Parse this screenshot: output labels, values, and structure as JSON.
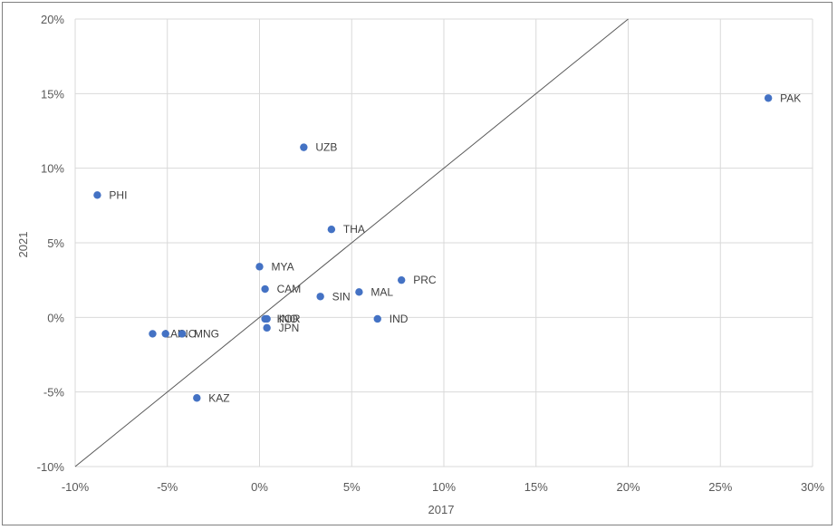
{
  "chart_data": {
    "type": "scatter",
    "title": "",
    "xlabel": "2017",
    "ylabel": "2021",
    "xlim": [
      -0.1,
      0.3
    ],
    "ylim": [
      -0.1,
      0.2
    ],
    "x_ticks": [
      -0.1,
      -0.05,
      0.0,
      0.05,
      0.1,
      0.15,
      0.2,
      0.25,
      0.3
    ],
    "x_tick_labels": [
      "-10%",
      "-5%",
      "0%",
      "5%",
      "10%",
      "15%",
      "20%",
      "25%",
      "30%"
    ],
    "y_ticks": [
      -0.1,
      -0.05,
      0.0,
      0.05,
      0.1,
      0.15,
      0.2
    ],
    "y_tick_labels": [
      "-10%",
      "-5%",
      "0%",
      "5%",
      "10%",
      "15%",
      "20%"
    ],
    "grid": true,
    "marker_color": "#4472c4",
    "reference_line": {
      "type": "y=x",
      "color": "#595959"
    },
    "points": [
      {
        "label": "PAK",
        "x": 0.276,
        "y": 0.147
      },
      {
        "label": "UZB",
        "x": 0.024,
        "y": 0.114
      },
      {
        "label": "PHI",
        "x": -0.088,
        "y": 0.082
      },
      {
        "label": "THA",
        "x": 0.039,
        "y": 0.059
      },
      {
        "label": "MYA",
        "x": 0.0,
        "y": 0.034
      },
      {
        "label": "PRC",
        "x": 0.077,
        "y": 0.025
      },
      {
        "label": "CAM",
        "x": 0.003,
        "y": 0.019
      },
      {
        "label": "MAL",
        "x": 0.054,
        "y": 0.017
      },
      {
        "label": "SIN",
        "x": 0.033,
        "y": 0.014
      },
      {
        "label": "IND",
        "x": 0.064,
        "y": -0.001
      },
      {
        "label": "KOR",
        "x": 0.003,
        "y": -0.001
      },
      {
        "label": "INO",
        "x": 0.004,
        "y": -0.001
      },
      {
        "label": "JPN",
        "x": 0.004,
        "y": -0.007
      },
      {
        "label": "LAO",
        "x": -0.058,
        "y": -0.011
      },
      {
        "label": "INO",
        "x": -0.051,
        "y": -0.011
      },
      {
        "label": "MNG",
        "x": -0.042,
        "y": -0.011
      },
      {
        "label": "KAZ",
        "x": -0.034,
        "y": -0.054
      }
    ]
  }
}
